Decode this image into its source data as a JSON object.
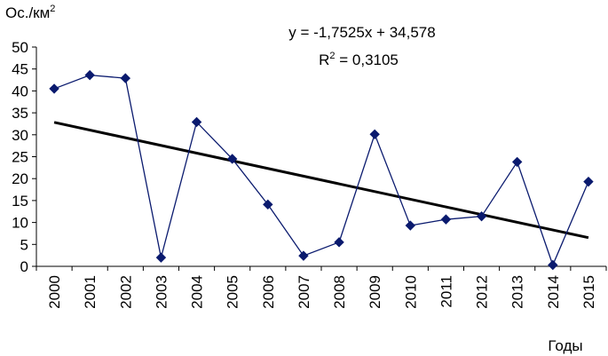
{
  "chart_data": {
    "type": "line",
    "ylabel": "Ос./км",
    "ylabel_superscript": "2",
    "xlabel": "Годы",
    "ylim": [
      0,
      50
    ],
    "yticks": [
      "0",
      "5",
      "10",
      "15",
      "20",
      "25",
      "30",
      "35",
      "40",
      "45",
      "50"
    ],
    "categories": [
      "2000",
      "2001",
      "2002",
      "2003",
      "2004",
      "2005",
      "2006",
      "2007",
      "2008",
      "2009",
      "2010",
      "2011",
      "2012",
      "2013",
      "2014",
      "2015"
    ],
    "series": [
      {
        "values": [
          40.5,
          43.6,
          42.9,
          2.0,
          32.9,
          24.5,
          14.1,
          2.4,
          5.5,
          30.1,
          9.3,
          10.7,
          11.4,
          23.8,
          0.3,
          19.3
        ],
        "color": "#0a1a6e",
        "marker": "diamond"
      }
    ],
    "trendline": {
      "equation": "y = -1,7525x + 34,578",
      "r2_prefix": "R",
      "r2_superscript": "2",
      "r2_value": " = 0,3105",
      "slope": -1.7525,
      "intercept": 34.578,
      "color": "#000000"
    },
    "grid": false,
    "legend": "none"
  }
}
